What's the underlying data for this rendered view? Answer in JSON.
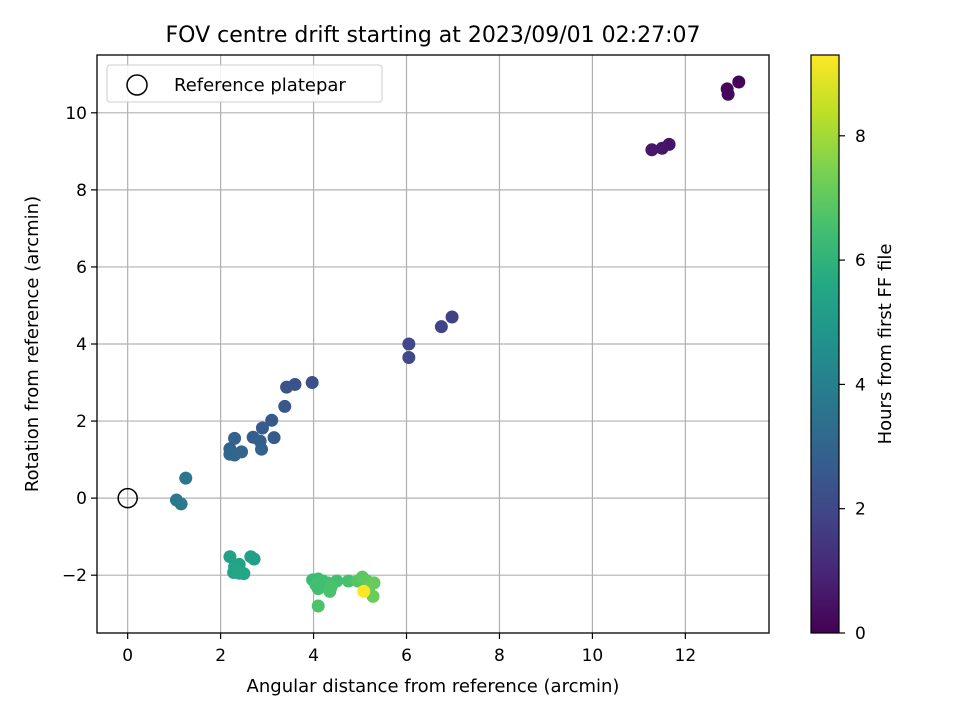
{
  "chart_data": {
    "type": "scatter",
    "title": "FOV centre drift starting at 2023/09/01 02:27:07",
    "xlabel": "Angular distance from reference (arcmin)",
    "ylabel": "Rotation from reference (arcmin)",
    "xlim": [
      -0.66,
      13.8
    ],
    "ylim": [
      -3.5,
      11.5
    ],
    "xticks": [
      0,
      2,
      4,
      6,
      8,
      10,
      12
    ],
    "yticks": [
      -2,
      0,
      2,
      4,
      6,
      8,
      10
    ],
    "grid": true,
    "legend": {
      "position": "top-left",
      "entries": [
        "Reference platepar"
      ]
    },
    "reference_point": {
      "x": 0,
      "y": 0,
      "label": "Reference platepar"
    },
    "colorbar": {
      "label": "Hours from first FF file",
      "min": 0,
      "max": 9.3,
      "ticks": [
        0,
        2,
        4,
        6,
        8
      ],
      "colormap": "viridis"
    },
    "points": [
      {
        "x": 13.15,
        "y": 10.8,
        "h": 0.1
      },
      {
        "x": 12.9,
        "y": 10.62,
        "h": 0.15
      },
      {
        "x": 12.92,
        "y": 10.48,
        "h": 0.2
      },
      {
        "x": 11.65,
        "y": 9.18,
        "h": 0.5
      },
      {
        "x": 11.5,
        "y": 9.08,
        "h": 0.55
      },
      {
        "x": 11.28,
        "y": 9.04,
        "h": 0.6
      },
      {
        "x": 6.98,
        "y": 4.7,
        "h": 1.8
      },
      {
        "x": 6.75,
        "y": 4.45,
        "h": 1.85
      },
      {
        "x": 6.05,
        "y": 4.0,
        "h": 2.0
      },
      {
        "x": 6.05,
        "y": 3.65,
        "h": 2.05
      },
      {
        "x": 3.97,
        "y": 3.0,
        "h": 2.3
      },
      {
        "x": 3.6,
        "y": 2.95,
        "h": 2.35
      },
      {
        "x": 3.42,
        "y": 2.88,
        "h": 2.4
      },
      {
        "x": 3.38,
        "y": 2.38,
        "h": 2.5
      },
      {
        "x": 3.1,
        "y": 2.02,
        "h": 2.6
      },
      {
        "x": 2.9,
        "y": 1.82,
        "h": 2.65
      },
      {
        "x": 3.15,
        "y": 1.57,
        "h": 2.7
      },
      {
        "x": 2.7,
        "y": 1.58,
        "h": 2.75
      },
      {
        "x": 2.85,
        "y": 1.48,
        "h": 2.8
      },
      {
        "x": 2.3,
        "y": 1.55,
        "h": 2.85
      },
      {
        "x": 2.2,
        "y": 1.28,
        "h": 2.9
      },
      {
        "x": 2.88,
        "y": 1.27,
        "h": 2.95
      },
      {
        "x": 2.45,
        "y": 1.2,
        "h": 3.0
      },
      {
        "x": 2.2,
        "y": 1.14,
        "h": 3.05
      },
      {
        "x": 2.3,
        "y": 1.12,
        "h": 3.1
      },
      {
        "x": 1.25,
        "y": 0.52,
        "h": 3.6
      },
      {
        "x": 1.05,
        "y": -0.05,
        "h": 3.7
      },
      {
        "x": 1.15,
        "y": -0.15,
        "h": 3.75
      },
      {
        "x": 2.65,
        "y": -1.52,
        "h": 5.2
      },
      {
        "x": 2.72,
        "y": -1.58,
        "h": 5.25
      },
      {
        "x": 2.2,
        "y": -1.52,
        "h": 5.3
      },
      {
        "x": 2.4,
        "y": -1.72,
        "h": 5.35
      },
      {
        "x": 2.3,
        "y": -1.78,
        "h": 5.4
      },
      {
        "x": 2.28,
        "y": -1.93,
        "h": 5.45
      },
      {
        "x": 2.4,
        "y": -1.95,
        "h": 5.5
      },
      {
        "x": 2.5,
        "y": -1.96,
        "h": 5.55
      },
      {
        "x": 3.98,
        "y": -2.12,
        "h": 6.3
      },
      {
        "x": 4.1,
        "y": -2.1,
        "h": 6.35
      },
      {
        "x": 4.2,
        "y": -2.15,
        "h": 6.4
      },
      {
        "x": 4.3,
        "y": -2.2,
        "h": 6.45
      },
      {
        "x": 4.5,
        "y": -2.15,
        "h": 6.5
      },
      {
        "x": 4.75,
        "y": -2.15,
        "h": 6.55
      },
      {
        "x": 4.05,
        "y": -2.25,
        "h": 6.5
      },
      {
        "x": 4.1,
        "y": -2.35,
        "h": 6.45
      },
      {
        "x": 4.38,
        "y": -2.3,
        "h": 6.6
      },
      {
        "x": 4.35,
        "y": -2.42,
        "h": 6.6
      },
      {
        "x": 4.1,
        "y": -2.8,
        "h": 6.65
      },
      {
        "x": 4.95,
        "y": -2.15,
        "h": 6.8
      },
      {
        "x": 5.05,
        "y": -2.05,
        "h": 6.9
      },
      {
        "x": 5.15,
        "y": -2.15,
        "h": 7.0
      },
      {
        "x": 5.3,
        "y": -2.2,
        "h": 7.1
      },
      {
        "x": 5.28,
        "y": -2.55,
        "h": 7.2
      },
      {
        "x": 5.2,
        "y": -2.3,
        "h": 7.15
      },
      {
        "x": 5.08,
        "y": -2.42,
        "h": 9.3
      }
    ]
  }
}
